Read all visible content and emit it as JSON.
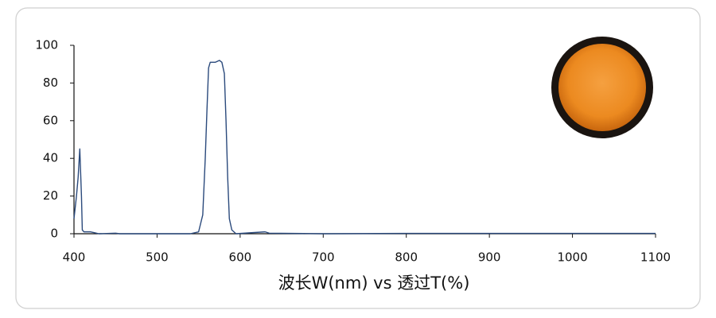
{
  "chart_data": {
    "type": "line",
    "x_label": "波长W(nm) vs 透过T(%)",
    "x": [
      400,
      403,
      405,
      407,
      409,
      410,
      412,
      420,
      425,
      430,
      450,
      455,
      540,
      550,
      555,
      558,
      560,
      562,
      564,
      570,
      575,
      578,
      581,
      583,
      585,
      587,
      590,
      595,
      630,
      635,
      700,
      800,
      1100
    ],
    "series": [
      {
        "color": "#2b4a7c",
        "values": [
          8,
          20,
          30,
          45,
          20,
          2,
          1,
          1,
          0.5,
          0,
          0.3,
          0,
          0,
          1,
          10,
          40,
          65,
          88,
          91,
          91,
          92,
          91,
          85,
          60,
          30,
          8,
          2,
          0,
          1,
          0.3,
          0,
          0.2,
          0.2
        ]
      }
    ],
    "xlim": [
      400,
      1100
    ],
    "xticks": [
      400,
      500,
      600,
      700,
      800,
      900,
      1000,
      1100
    ],
    "ylim": [
      0,
      100
    ],
    "yticks": [
      0,
      20,
      40,
      60,
      80,
      100
    ]
  }
}
